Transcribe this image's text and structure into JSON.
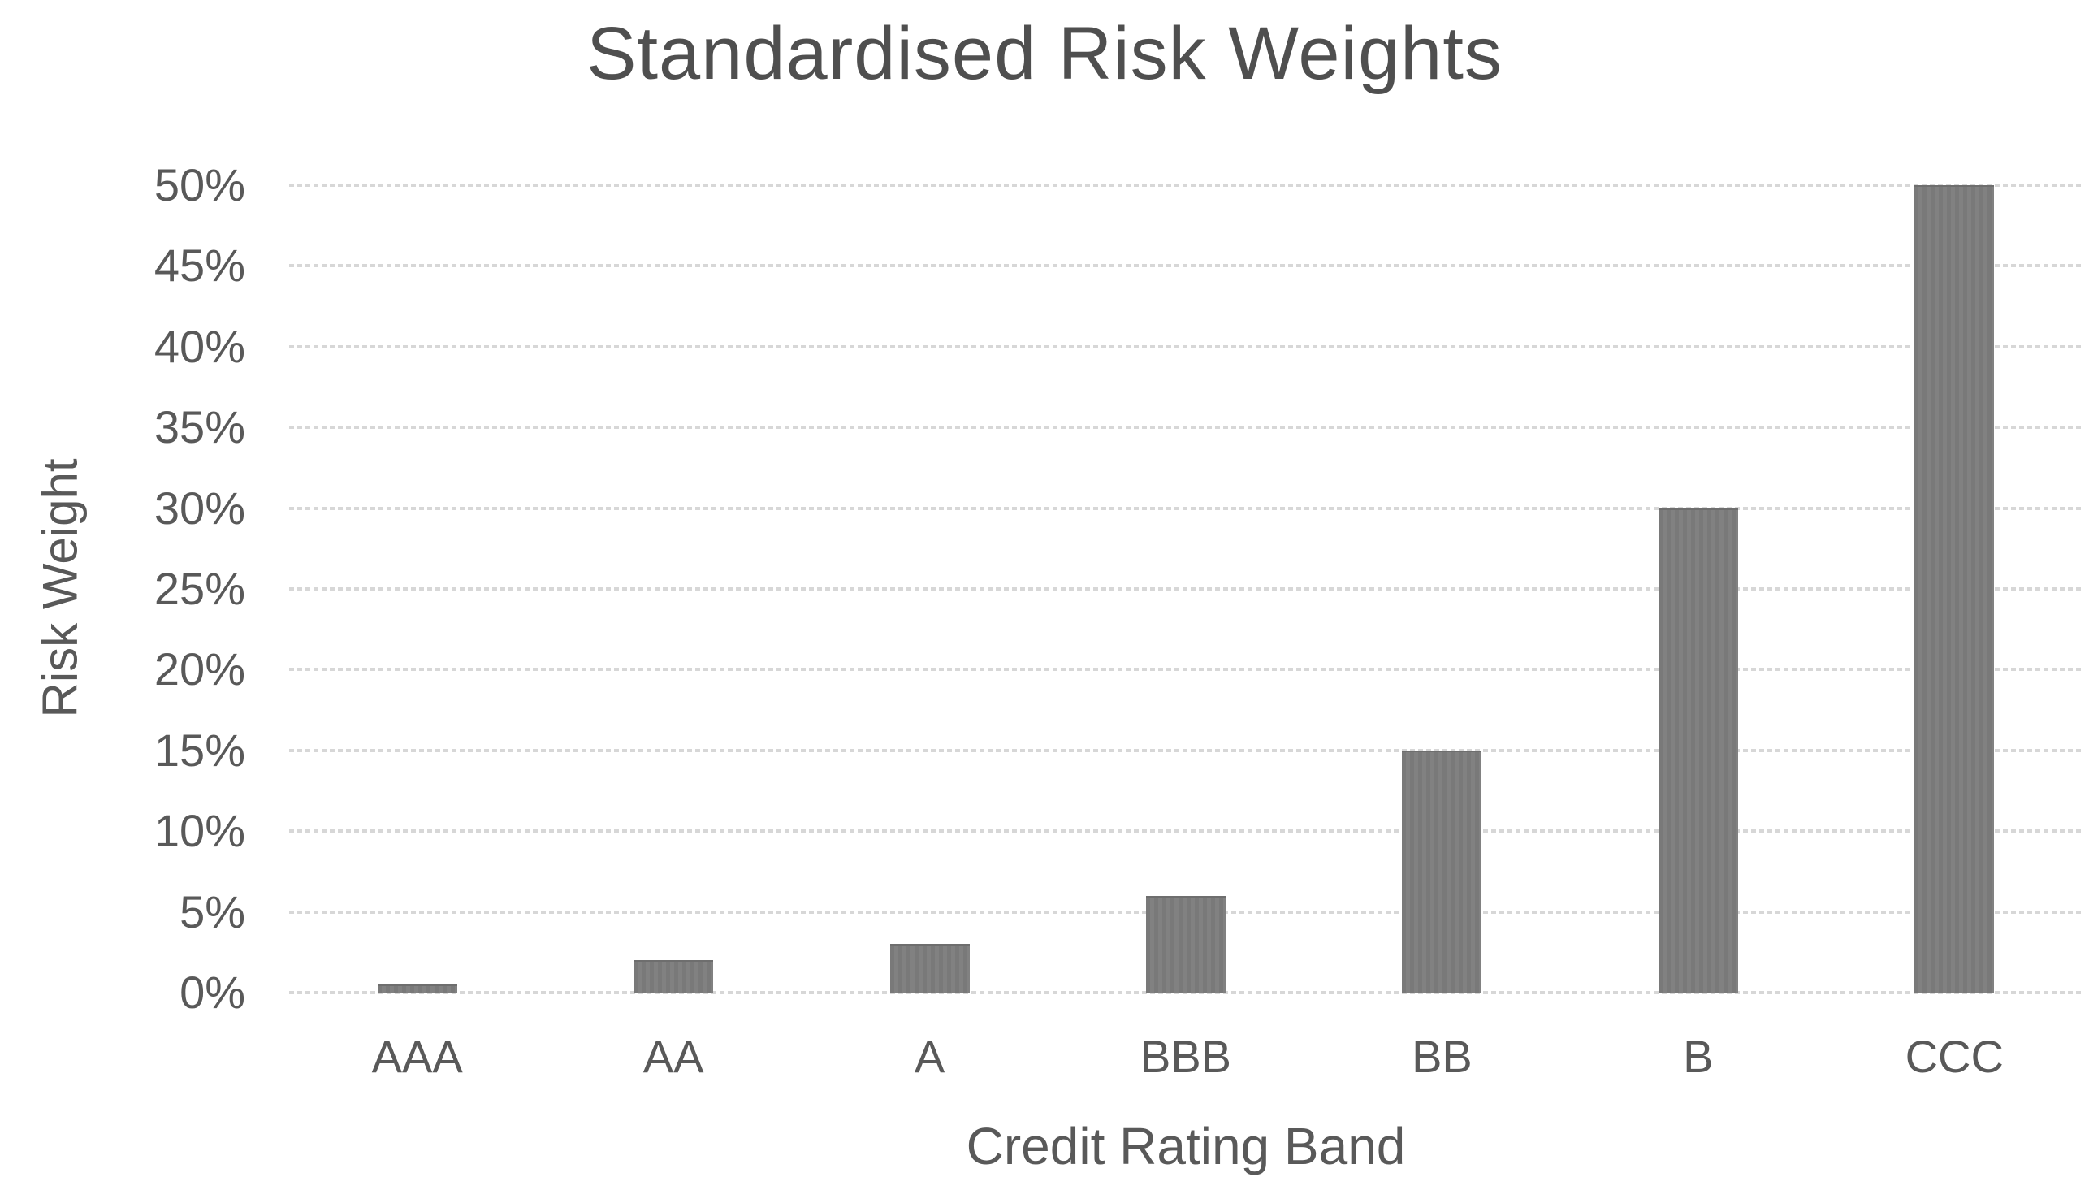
{
  "chart_data": {
    "type": "bar",
    "title": "Standardised Risk Weights",
    "xlabel": "Credit Rating Band",
    "ylabel": "Risk Weight",
    "categories": [
      "AAA",
      "AA",
      "A",
      "BBB",
      "BB",
      "B",
      "CCC"
    ],
    "values": [
      0.5,
      2,
      3,
      6,
      15,
      30,
      50
    ],
    "value_unit": "%",
    "ylim": [
      0,
      50
    ],
    "ytick_step": 5,
    "ytick_labels": [
      "0%",
      "5%",
      "10%",
      "15%",
      "20%",
      "25%",
      "30%",
      "35%",
      "40%",
      "45%",
      "50%"
    ],
    "grid": "horizontal dotted major gridlines",
    "legend": "none",
    "colors": {
      "bar": "#7d7d7d",
      "text": "#595959",
      "title_text": "#4f4f4f",
      "gridline": "#d7d7d7",
      "background": "#ffffff"
    }
  }
}
